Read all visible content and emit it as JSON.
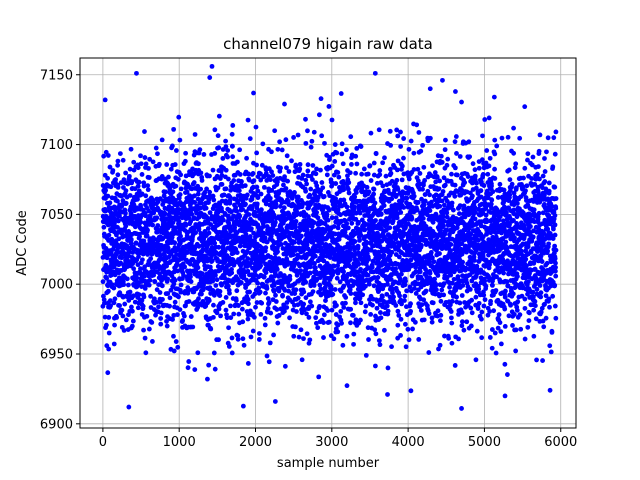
{
  "chart_data": {
    "type": "scatter",
    "title": "channel079 higain raw data",
    "xlabel": "sample number",
    "ylabel": "ADC Code",
    "xlim": [
      -300,
      6200
    ],
    "ylim": [
      6897,
      7162
    ],
    "xticks": [
      0,
      1000,
      2000,
      3000,
      4000,
      5000,
      6000
    ],
    "yticks": [
      6900,
      6950,
      7000,
      7050,
      7100,
      7150
    ],
    "grid": true,
    "legend": "none",
    "marker_color": "#0000ff",
    "n_points": 5940,
    "distribution": {
      "center": 7030,
      "spread_sd": 30
    },
    "notable_points": [
      {
        "x": 440,
        "y": 7151
      },
      {
        "x": 1400,
        "y": 7148
      },
      {
        "x": 1430,
        "y": 7156
      },
      {
        "x": 3570,
        "y": 7151
      },
      {
        "x": 4450,
        "y": 7146
      },
      {
        "x": 4290,
        "y": 7140
      },
      {
        "x": 4620,
        "y": 7138
      },
      {
        "x": 5130,
        "y": 7134
      },
      {
        "x": 30,
        "y": 7132
      },
      {
        "x": 2380,
        "y": 7129
      },
      {
        "x": 340,
        "y": 6912
      },
      {
        "x": 2260,
        "y": 6916
      },
      {
        "x": 4700,
        "y": 6911
      },
      {
        "x": 1370,
        "y": 6932
      },
      {
        "x": 3730,
        "y": 6921
      },
      {
        "x": 5270,
        "y": 6920
      },
      {
        "x": 5860,
        "y": 6924
      }
    ]
  }
}
